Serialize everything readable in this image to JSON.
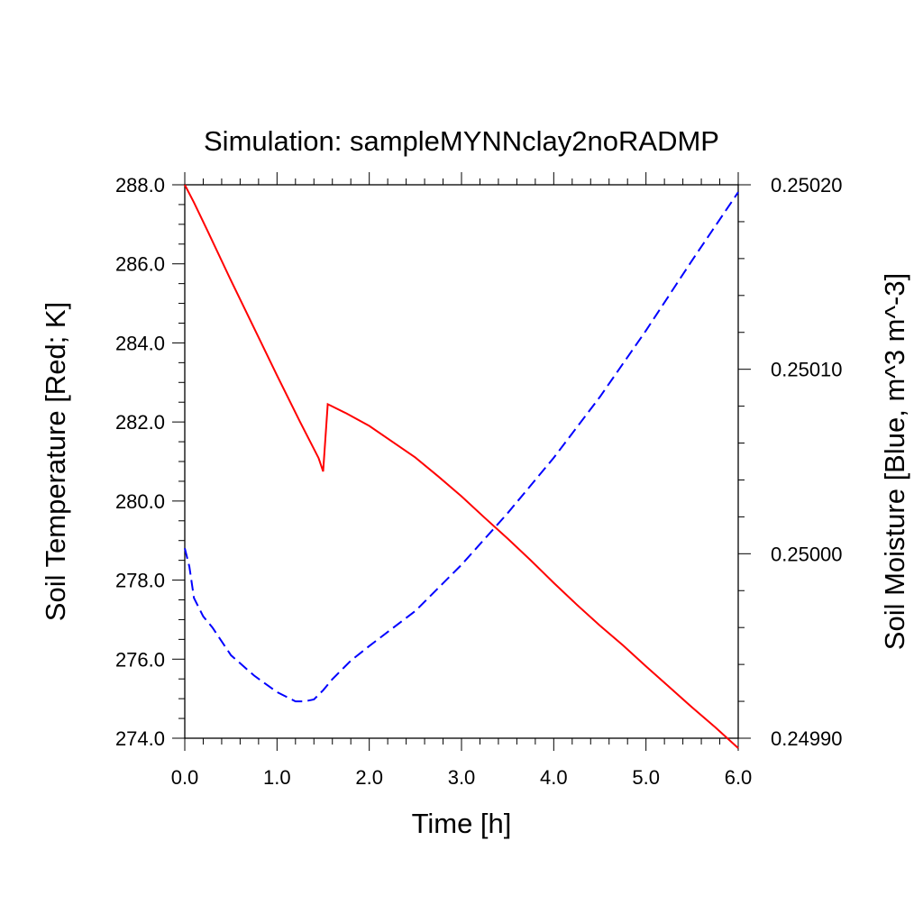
{
  "chart_data": {
    "type": "line",
    "title": "Simulation: sampleMYNNclay2noRADMP",
    "xlabel": "Time [h]",
    "ylabel_left": "Soil Temperature [Red; K]",
    "ylabel_right": "Soil Moisture [Blue, m^3 m^-3]",
    "xlim": [
      0,
      6
    ],
    "ylim_left": [
      274,
      288
    ],
    "ylim_right": [
      0.2499,
      0.2502
    ],
    "x_ticks": [
      "0.0",
      "1.0",
      "2.0",
      "3.0",
      "4.0",
      "5.0",
      "6.0"
    ],
    "y_left_ticks": [
      "274.0",
      "276.0",
      "278.0",
      "280.0",
      "282.0",
      "284.0",
      "286.0",
      "288.0"
    ],
    "y_right_ticks": [
      "0.24990",
      "0.25000",
      "0.25010",
      "0.25020"
    ],
    "grid": false,
    "series": [
      {
        "axis": "left",
        "color": "#ff0000",
        "style": "solid",
        "x": [
          0,
          0.1,
          0.25,
          0.5,
          0.75,
          1.0,
          1.25,
          1.45,
          1.5,
          1.55,
          1.75,
          2.0,
          2.25,
          2.5,
          2.75,
          3.0,
          3.25,
          3.5,
          3.75,
          4.0,
          4.25,
          4.5,
          4.75,
          5.0,
          5.25,
          5.5,
          5.75,
          6.0
        ],
        "y": [
          288.0,
          287.55,
          286.82,
          285.58,
          284.38,
          283.18,
          282.0,
          281.09,
          280.75,
          282.45,
          282.22,
          281.9,
          281.5,
          281.1,
          280.62,
          280.12,
          279.58,
          279.05,
          278.5,
          277.93,
          277.38,
          276.85,
          276.35,
          275.82,
          275.3,
          274.78,
          274.28,
          273.75
        ]
      },
      {
        "axis": "right",
        "color": "#0000ff",
        "style": "dashed",
        "x": [
          0,
          0.05,
          0.1,
          0.2,
          0.3,
          0.5,
          0.75,
          1.0,
          1.2,
          1.3,
          1.4,
          1.5,
          1.6,
          1.8,
          2.0,
          2.5,
          3.0,
          3.5,
          4.0,
          4.5,
          5.0,
          5.5,
          6.0
        ],
        "y": [
          0.250003,
          0.249993,
          0.249976,
          0.249966,
          0.24996,
          0.249945,
          0.249934,
          0.249925,
          0.24992,
          0.24992,
          0.249921,
          0.249926,
          0.249932,
          0.249942,
          0.24995,
          0.249969,
          0.249994,
          0.250022,
          0.250052,
          0.250085,
          0.250121,
          0.250159,
          0.250196
        ]
      }
    ]
  }
}
